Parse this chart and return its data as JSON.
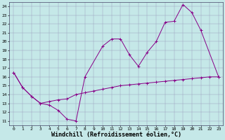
{
  "xlabel": "Windchill (Refroidissement éolien,°C)",
  "xlim": [
    -0.5,
    23.5
  ],
  "ylim": [
    10.5,
    24.5
  ],
  "yticks": [
    11,
    12,
    13,
    14,
    15,
    16,
    17,
    18,
    19,
    20,
    21,
    22,
    23,
    24
  ],
  "xticks": [
    0,
    1,
    2,
    3,
    4,
    5,
    6,
    7,
    8,
    9,
    10,
    11,
    12,
    13,
    14,
    15,
    16,
    17,
    18,
    19,
    20,
    21,
    22,
    23
  ],
  "bg_color": "#c5e8e8",
  "line_color": "#880088",
  "line1_x": [
    0,
    1,
    2,
    3,
    4,
    5,
    6,
    7,
    8,
    10,
    11,
    12,
    13,
    14,
    15,
    16,
    17,
    18,
    19,
    20,
    21,
    23
  ],
  "line1_y": [
    16.5,
    14.8,
    13.8,
    13.0,
    12.8,
    12.2,
    11.2,
    11.0,
    16.0,
    19.5,
    20.3,
    20.3,
    18.5,
    17.2,
    18.8,
    20.0,
    22.2,
    22.3,
    24.2,
    23.3,
    21.3,
    16.0
  ],
  "line2_x": [
    0,
    1,
    2,
    3,
    4,
    5,
    6,
    7,
    8,
    9,
    10,
    11,
    12,
    13,
    14,
    15,
    16,
    17,
    18,
    19,
    20,
    21,
    22,
    23
  ],
  "line2_y": [
    16.5,
    14.8,
    13.8,
    13.0,
    13.2,
    13.4,
    13.5,
    14.0,
    14.2,
    14.4,
    14.6,
    14.8,
    15.0,
    15.1,
    15.2,
    15.3,
    15.4,
    15.5,
    15.6,
    15.7,
    15.8,
    15.9,
    16.0,
    16.0
  ],
  "grid_color": "#9999bb",
  "tick_fontsize": 4.5,
  "xlabel_fontsize": 6.0,
  "lw": 0.7,
  "marker_size": 2.5
}
